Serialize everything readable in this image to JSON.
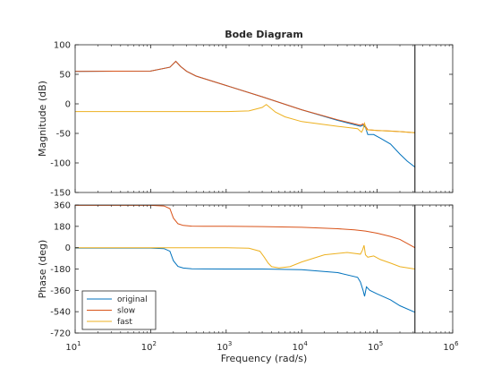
{
  "chart_data": {
    "type": "line",
    "title": "Bode Diagram",
    "xlabel": "Frequency  (rad/s)",
    "x_scale": "log",
    "xlim": [
      10,
      1000000
    ],
    "x_ticks": [
      10,
      100,
      1000,
      10000,
      100000,
      1000000
    ],
    "x_tick_labels": [
      {
        "base": "10",
        "exp": "1"
      },
      {
        "base": "10",
        "exp": "2"
      },
      {
        "base": "10",
        "exp": "3"
      },
      {
        "base": "10",
        "exp": "4"
      },
      {
        "base": "10",
        "exp": "5"
      },
      {
        "base": "10",
        "exp": "6"
      }
    ],
    "x_marker_line": 316228,
    "grid": false,
    "legend_position": "bottom-left",
    "colors": {
      "original": "#0072BD",
      "slow": "#D95319",
      "fast": "#EDB120",
      "axis": "#262626",
      "marker": "#000000"
    },
    "panels": [
      {
        "ylabel": "Magnitude (dB)",
        "ylim": [
          -150,
          100
        ],
        "y_ticks": [
          100,
          50,
          0,
          -50,
          -100,
          -150
        ],
        "y_tick_labels": [
          "100",
          "50",
          "0",
          "-50",
          "-100",
          "-150"
        ],
        "series": [
          {
            "name": "original",
            "x": [
              10,
              100,
              180,
              215,
              250,
              300,
              400,
              1000,
              3000,
              10000,
              30000,
              60000,
              65000,
              70000,
              75000,
              90000,
              110000,
              150000,
              200000,
              250000,
              316228
            ],
            "y": [
              55,
              55.5,
              62,
              72,
              63,
              55,
              47,
              31,
              12,
              -10,
              -28,
              -38,
              -36,
              -40,
              -52,
              -52,
              -58,
              -68,
              -85,
              -97,
              -107
            ]
          },
          {
            "name": "slow",
            "x": [
              10,
              100,
              180,
              215,
              250,
              300,
              400,
              1000,
              3000,
              10000,
              30000,
              60000,
              65000,
              70000,
              75000,
              100000,
              150000,
              200000,
              316228
            ],
            "y": [
              55,
              55.5,
              62,
              72,
              63,
              55,
              47,
              31,
              12,
              -10,
              -27,
              -36,
              -34,
              -38,
              -44,
              -45,
              -46,
              -47,
              -49
            ]
          },
          {
            "name": "fast",
            "x": [
              10,
              100,
              1000,
              2000,
              3000,
              3400,
              4500,
              6000,
              10000,
              30000,
              55000,
              62000,
              65000,
              68000,
              72000,
              80000,
              100000,
              200000,
              316228
            ],
            "y": [
              -13,
              -13,
              -13,
              -12,
              -6,
              -1,
              -14,
              -22,
              -30,
              -38,
              -42,
              -48,
              -43,
              -33,
              -44,
              -44,
              -45,
              -47,
              -49
            ]
          }
        ]
      },
      {
        "ylabel": "Phase (deg)",
        "ylim": [
          -720,
          360
        ],
        "y_ticks": [
          360,
          180,
          0,
          -180,
          -360,
          -540,
          -720
        ],
        "y_tick_labels": [
          "360",
          "180",
          "0",
          "-180",
          "-360",
          "-540",
          "-720"
        ],
        "series": [
          {
            "name": "original",
            "x": [
              10,
              100,
              150,
              180,
              200,
              230,
              270,
              350,
              500,
              1000,
              3000,
              10000,
              30000,
              55000,
              60000,
              65000,
              68000,
              72000,
              80000,
              100000,
              150000,
              200000,
              316228
            ],
            "y": [
              -3,
              -3,
              -8,
              -30,
              -110,
              -158,
              -172,
              -178,
              -179,
              -180,
              -180,
              -185,
              -210,
              -250,
              -290,
              -360,
              -410,
              -330,
              -360,
              -390,
              -440,
              -490,
              -545
            ]
          },
          {
            "name": "slow",
            "x": [
              10,
              100,
              150,
              180,
              200,
              230,
              270,
              350,
              500,
              1000,
              3000,
              10000,
              30000,
              50000,
              70000,
              100000,
              150000,
              200000,
              316228
            ],
            "y": [
              357,
              357,
              352,
              330,
              250,
              202,
              188,
              182,
              181,
              180,
              178,
              172,
              160,
              150,
              140,
              122,
              95,
              70,
              0
            ]
          },
          {
            "name": "fast",
            "x": [
              10,
              100,
              1000,
              2000,
              2800,
              3200,
              3600,
              4000,
              5000,
              7000,
              10000,
              20000,
              40000,
              60000,
              64000,
              67000,
              70000,
              75000,
              90000,
              110000,
              150000,
              200000,
              316228
            ],
            "y": [
              0,
              0,
              0,
              -5,
              -30,
              -80,
              -130,
              -160,
              -170,
              -160,
              -120,
              -60,
              -40,
              -55,
              -20,
              20,
              -60,
              -80,
              -70,
              -100,
              -130,
              -160,
              -180
            ]
          }
        ]
      }
    ]
  }
}
